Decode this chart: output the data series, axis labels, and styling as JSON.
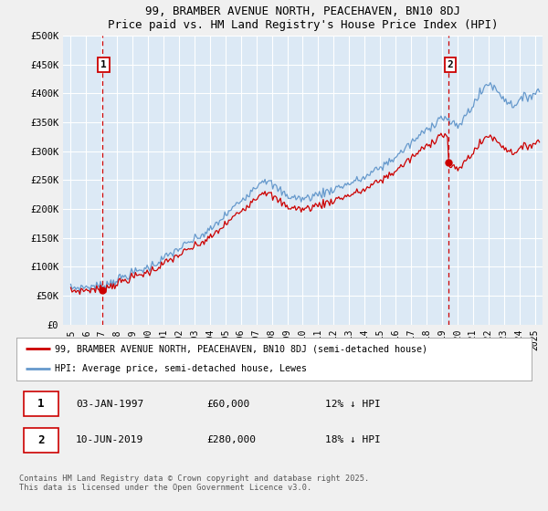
{
  "title": "99, BRAMBER AVENUE NORTH, PEACEHAVEN, BN10 8DJ",
  "subtitle": "Price paid vs. HM Land Registry's House Price Index (HPI)",
  "ylim": [
    0,
    500000
  ],
  "yticks": [
    0,
    50000,
    100000,
    150000,
    200000,
    250000,
    300000,
    350000,
    400000,
    450000,
    500000
  ],
  "ytick_labels": [
    "£0",
    "£50K",
    "£100K",
    "£150K",
    "£200K",
    "£250K",
    "£300K",
    "£350K",
    "£400K",
    "£450K",
    "£500K"
  ],
  "background_color": "#dce9f5",
  "grid_color": "#ffffff",
  "red_line_color": "#cc0000",
  "blue_line_color": "#6699cc",
  "marker1_x": 1997.03,
  "marker1_y": 60000,
  "marker2_x": 2019.44,
  "marker2_y": 280000,
  "annotation1_label": "1",
  "annotation2_label": "2",
  "legend_line1": "99, BRAMBER AVENUE NORTH, PEACEHAVEN, BN10 8DJ (semi-detached house)",
  "legend_line2": "HPI: Average price, semi-detached house, Lewes",
  "table_row1": [
    "1",
    "03-JAN-1997",
    "£60,000",
    "12% ↓ HPI"
  ],
  "table_row2": [
    "2",
    "10-JUN-2019",
    "£280,000",
    "18% ↓ HPI"
  ],
  "footnote": "Contains HM Land Registry data © Crown copyright and database right 2025.\nThis data is licensed under the Open Government Licence v3.0.",
  "xlim": [
    1994.5,
    2025.5
  ],
  "fig_bg": "#f0f0f0"
}
